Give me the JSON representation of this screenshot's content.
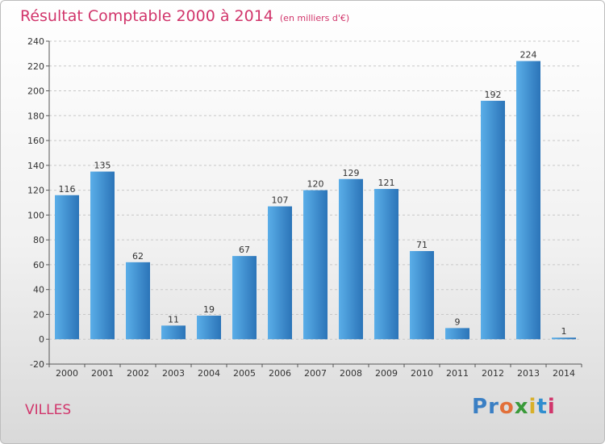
{
  "header": {
    "title": "Résultat Comptable 2000 à 2014",
    "subtitle": "(en milliers d'€)"
  },
  "footer": {
    "city": "VILLES",
    "logo_letters": [
      "P",
      "r",
      "o",
      "x",
      "i",
      "t",
      "i"
    ],
    "logo_colors": [
      "#3a7fc4",
      "#3a7fc4",
      "#e2703a",
      "#3a9a3a",
      "#d8b02a",
      "#2f8ecf",
      "#d1356b"
    ]
  },
  "colors": {
    "bar": "#3d8fd6",
    "bar_light": "#5aaee8",
    "bar_dark": "#2b74b8",
    "accent": "#d1356b"
  },
  "chart_data": {
    "type": "bar",
    "categories": [
      "2000",
      "2001",
      "2002",
      "2003",
      "2004",
      "2005",
      "2006",
      "2007",
      "2008",
      "2009",
      "2010",
      "2011",
      "2012",
      "2013",
      "2014"
    ],
    "values": [
      116,
      135,
      62,
      11,
      19,
      67,
      107,
      120,
      129,
      121,
      71,
      9,
      192,
      224,
      1
    ],
    "data_labels": [
      "116",
      "135",
      "62",
      "11",
      "19",
      "67",
      "107",
      "120",
      "129",
      "121",
      "71",
      "9",
      "192",
      "224",
      "1"
    ],
    "yticks": [
      -20,
      0,
      20,
      40,
      60,
      80,
      100,
      120,
      140,
      160,
      180,
      200,
      220,
      240
    ],
    "ylim": [
      -20,
      240
    ],
    "grid": "horizontal-dashed"
  }
}
